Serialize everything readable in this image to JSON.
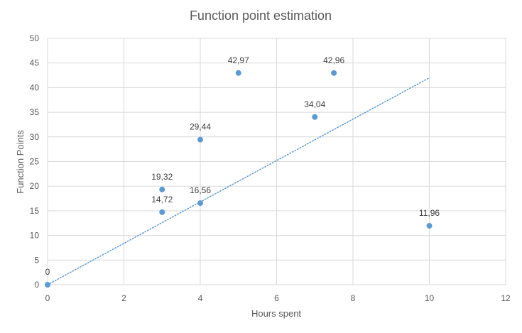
{
  "chart_data": {
    "type": "scatter",
    "title": "Function point estimation",
    "xlabel": "Hours spent",
    "ylabel": "Function Points",
    "xlim": [
      0,
      12
    ],
    "ylim": [
      0,
      50
    ],
    "x_ticks": [
      "0",
      "2",
      "4",
      "6",
      "8",
      "10",
      "12"
    ],
    "y_ticks": [
      "0",
      "5",
      "10",
      "15",
      "20",
      "25",
      "30",
      "35",
      "40",
      "45",
      "50"
    ],
    "grid": true,
    "legend": "none",
    "series": [
      {
        "color": "#5b9bd5",
        "points": [
          {
            "x": 0,
            "y": 0,
            "label": "0"
          },
          {
            "x": 3,
            "y": 19.32,
            "label": "19,32"
          },
          {
            "x": 3,
            "y": 14.72,
            "label": "14,72"
          },
          {
            "x": 4,
            "y": 29.44,
            "label": "29,44"
          },
          {
            "x": 4,
            "y": 16.56,
            "label": "16,56"
          },
          {
            "x": 5,
            "y": 42.97,
            "label": "42,97"
          },
          {
            "x": 7,
            "y": 34.04,
            "label": "34,04"
          },
          {
            "x": 7.5,
            "y": 42.96,
            "label": "42,96"
          },
          {
            "x": 10,
            "y": 11.96,
            "label": "11,96"
          }
        ]
      }
    ],
    "trendline": {
      "style": "dotted",
      "color": "#5b9bd5",
      "from": {
        "x": 0,
        "y": 0
      },
      "to": {
        "x": 10,
        "y": 42
      }
    }
  }
}
